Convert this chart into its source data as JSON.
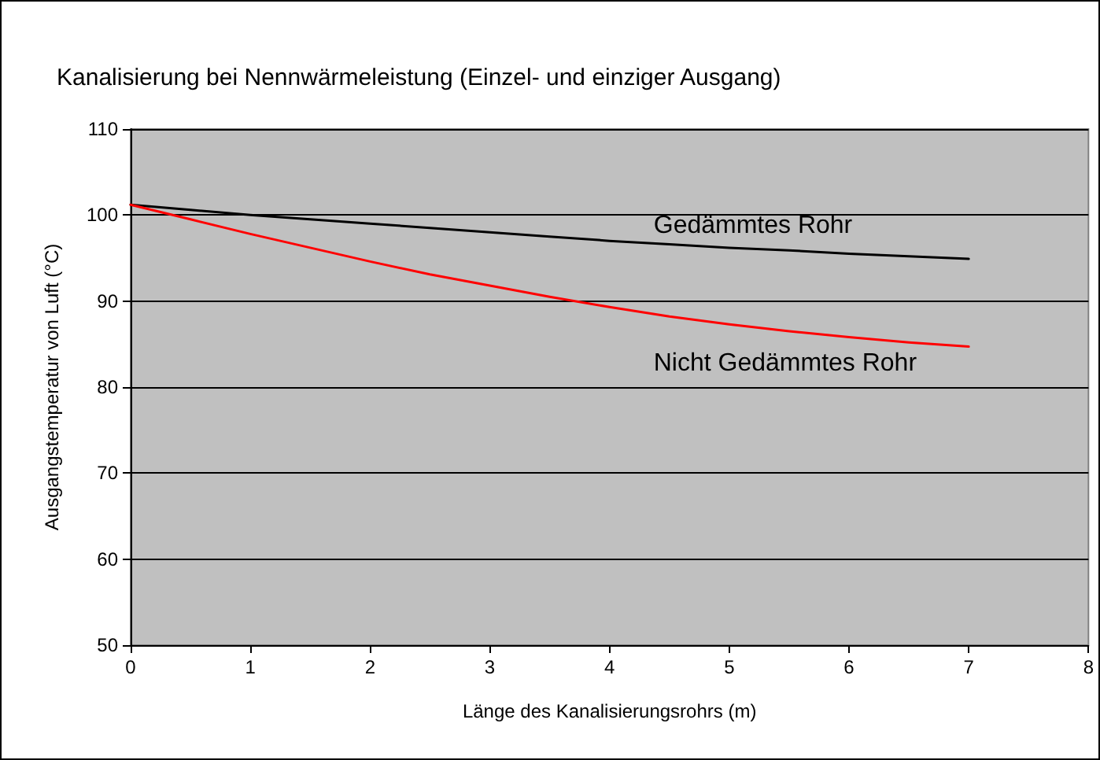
{
  "chart_data": {
    "type": "line",
    "title": "Kanalisierung bei Nennwärmeleistung (Einzel- und einziger Ausgang)",
    "xlabel": "Länge des Kanalisierungsrohrs (m)",
    "ylabel": "Ausgangstemperatur von Luft (°C)",
    "x": [
      0,
      0.5,
      1,
      1.5,
      2,
      2.5,
      3,
      3.5,
      4,
      4.5,
      5,
      5.5,
      6,
      6.5,
      7
    ],
    "series": [
      {
        "name": "Gedämmtes Rohr",
        "color": "#000000",
        "values": [
          101.2,
          100.6,
          100,
          99.5,
          99,
          98.5,
          98,
          97.5,
          97,
          96.6,
          96.2,
          95.9,
          95.5,
          95.2,
          94.9
        ]
      },
      {
        "name": "Nicht Gedämmtes Rohr",
        "color": "#ff0000",
        "values": [
          101.2,
          99.5,
          97.8,
          96.2,
          94.6,
          93.1,
          91.8,
          90.5,
          89.3,
          88.2,
          87.3,
          86.5,
          85.8,
          85.2,
          84.7
        ]
      }
    ],
    "xlim": [
      0,
      8
    ],
    "xticks": [
      0,
      1,
      2,
      3,
      4,
      5,
      6,
      7,
      8
    ],
    "ylim": [
      50,
      110
    ],
    "yticks": [
      50,
      60,
      70,
      80,
      90,
      100,
      110
    ],
    "grid": "y",
    "legend": false,
    "marker": "none",
    "line_style": "solid"
  }
}
